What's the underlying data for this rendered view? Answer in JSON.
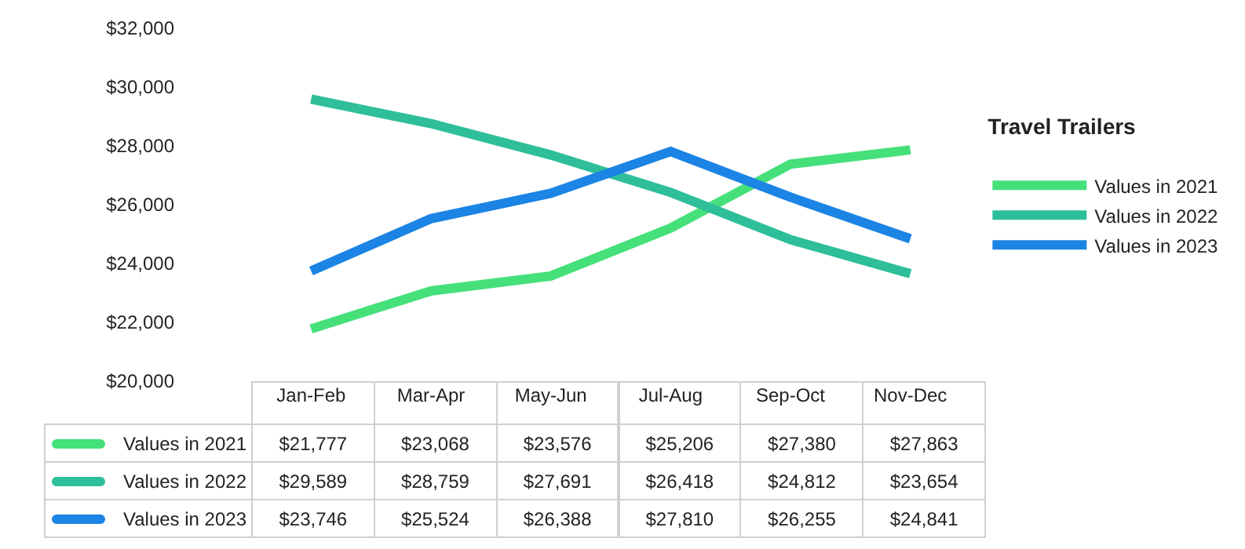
{
  "chart_data": {
    "type": "line",
    "legend_title": "Travel Trailers",
    "categories": [
      "Jan-Feb",
      "Mar-Apr",
      "May-Jun",
      "Jul-Aug",
      "Sep-Oct",
      "Nov-Dec"
    ],
    "series": [
      {
        "name": "Values in 2021",
        "color": "#45e07a",
        "values": [
          21777,
          23068,
          23576,
          25206,
          27380,
          27863
        ]
      },
      {
        "name": "Values in 2022",
        "color": "#2ebf9a",
        "values": [
          29589,
          28759,
          27691,
          26418,
          24812,
          23654
        ]
      },
      {
        "name": "Values in 2023",
        "color": "#1b84e4",
        "values": [
          23746,
          25524,
          26388,
          27810,
          26255,
          24841
        ]
      }
    ],
    "ylim": [
      20000,
      32000
    ],
    "yticks": [
      {
        "value": 20000,
        "label": "$20,000"
      },
      {
        "value": 22000,
        "label": "$22,000"
      },
      {
        "value": 24000,
        "label": "$24,000"
      },
      {
        "value": 26000,
        "label": "$26,000"
      },
      {
        "value": 28000,
        "label": "$28,000"
      },
      {
        "value": 30000,
        "label": "$30,000"
      },
      {
        "value": 32000,
        "label": "$32,000"
      }
    ],
    "grid": false,
    "legend": "right",
    "marker": "none",
    "line_style": "solid",
    "value_labels": [
      [
        "$21,777",
        "$23,068",
        "$23,576",
        "$25,206",
        "$27,380",
        "$27,863"
      ],
      [
        "$29,589",
        "$28,759",
        "$27,691",
        "$26,418",
        "$24,812",
        "$23,654"
      ],
      [
        "$23,746",
        "$25,524",
        "$26,388",
        "$27,810",
        "$26,255",
        "$24,841"
      ]
    ]
  }
}
